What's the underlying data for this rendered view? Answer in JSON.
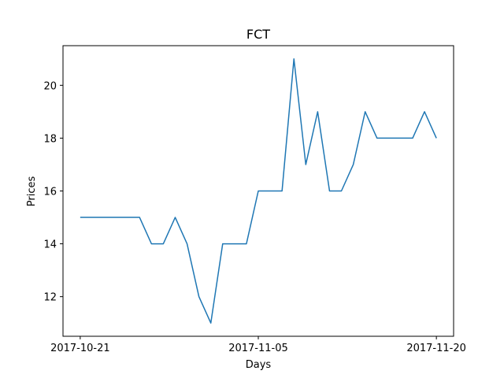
{
  "chart_data": {
    "type": "line",
    "title": "FCT",
    "xlabel": "Days",
    "ylabel": "Prices",
    "x": [
      "2017-10-21",
      "2017-10-22",
      "2017-10-23",
      "2017-10-24",
      "2017-10-25",
      "2017-10-26",
      "2017-10-27",
      "2017-10-28",
      "2017-10-29",
      "2017-10-30",
      "2017-10-31",
      "2017-11-01",
      "2017-11-02",
      "2017-11-03",
      "2017-11-04",
      "2017-11-05",
      "2017-11-06",
      "2017-11-07",
      "2017-11-08",
      "2017-11-09",
      "2017-11-10",
      "2017-11-11",
      "2017-11-12",
      "2017-11-13",
      "2017-11-14",
      "2017-11-15",
      "2017-11-16",
      "2017-11-17",
      "2017-11-18",
      "2017-11-19",
      "2017-11-20"
    ],
    "series": [
      {
        "values": [
          15,
          15,
          15,
          15,
          15,
          15,
          14,
          14,
          15,
          14,
          12,
          11,
          14,
          14,
          14,
          16,
          16,
          16,
          21,
          17,
          19,
          16,
          16,
          17,
          19,
          18,
          18,
          18,
          18,
          19,
          18
        ],
        "color": "#1f77b4"
      }
    ],
    "xticks": [
      "2017-10-21",
      "2017-11-05",
      "2017-11-20"
    ],
    "yticks": [
      12,
      14,
      16,
      18,
      20
    ],
    "xlim": [
      "2017-10-19T13:12",
      "2017-11-21T10:48"
    ],
    "ylim": [
      10.5,
      21.5
    ],
    "grid": false
  }
}
